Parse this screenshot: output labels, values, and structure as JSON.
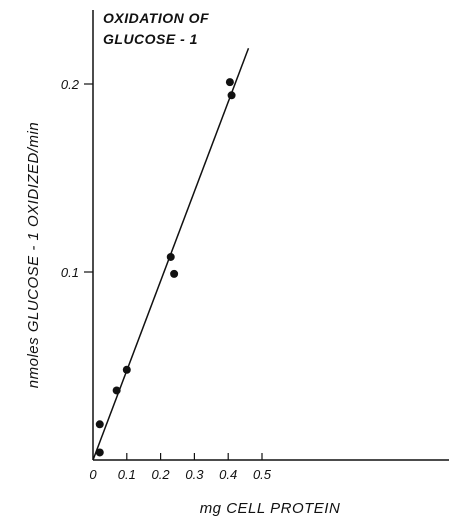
{
  "chart_data": {
    "type": "scatter",
    "title_lines": [
      "OXIDATION OF",
      "GLUCOSE - 1"
    ],
    "xlabel": "mg CELL PROTEIN",
    "ylabel": "nmoles GLUCOSE - 1 OXIDIZED/min",
    "xlim": [
      0,
      0.6
    ],
    "ylim": [
      0,
      0.235
    ],
    "x_ticks": [
      "0",
      "0.1",
      "0.2",
      "0.3",
      "0.4",
      "0.5"
    ],
    "y_ticks": [
      "0.1",
      "0.2"
    ],
    "grid": false,
    "legend": "none",
    "series": [
      {
        "points": [
          {
            "x": 0.02,
            "y": 0.004
          },
          {
            "x": 0.02,
            "y": 0.019
          },
          {
            "x": 0.07,
            "y": 0.037
          },
          {
            "x": 0.1,
            "y": 0.048
          },
          {
            "x": 0.23,
            "y": 0.108
          },
          {
            "x": 0.24,
            "y": 0.099
          },
          {
            "x": 0.405,
            "y": 0.201
          },
          {
            "x": 0.41,
            "y": 0.194
          }
        ]
      }
    ],
    "fit_line": {
      "x": [
        0,
        0.46
      ],
      "y": [
        0,
        0.219
      ]
    }
  }
}
